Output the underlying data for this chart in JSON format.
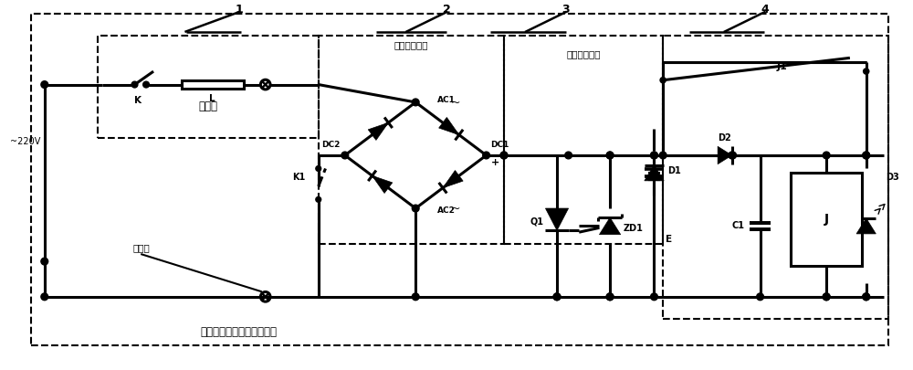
{
  "bg_color": "#ffffff",
  "line_color": "#000000",
  "lw": 2.2,
  "fig_width": 10.0,
  "fig_height": 4.05,
  "labels": {
    "220V": "~220V",
    "K": "K",
    "L": "L",
    "yongdianqi": "用電器",
    "jie_xian_zhu": "接線柱",
    "qiao_shi": "橋式整流電路",
    "pang_lu": "旁路保護電路",
    "J1": "J1",
    "DC1": "DC1",
    "DC2": "DC2",
    "AC1": "AC1",
    "AC2": "AC2",
    "K1": "K1",
    "Q1": "Q1",
    "ZD1": "ZD1",
    "E": "E",
    "D1": "D1",
    "D2": "D2",
    "C1": "C1",
    "J": "J",
    "D3": "D3",
    "bottom_label": "一種基于用電器的充電電路",
    "label1": "1",
    "label2": "2",
    "label3": "3",
    "label4": "4",
    "tilde1": "~",
    "tilde2": "~",
    "plus": "+"
  }
}
